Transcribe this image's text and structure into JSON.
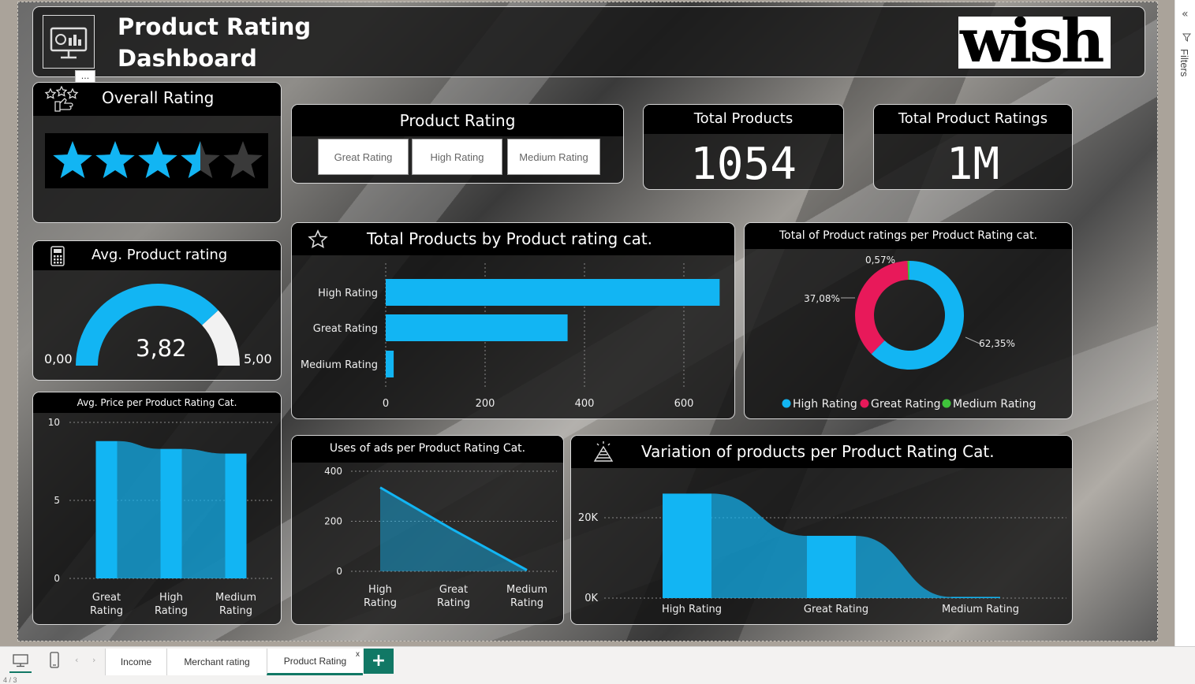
{
  "header": {
    "title_line1": "Product Rating",
    "title_line2": "Dashboard",
    "logo_text": "wish",
    "more_label": "···"
  },
  "overall_rating": {
    "title": "Overall Rating",
    "value": 3.5,
    "max": 5
  },
  "slicer": {
    "title": "Product Rating",
    "options": [
      "Great Rating",
      "High Rating",
      "Medium Rating"
    ]
  },
  "kpis": {
    "total_products": {
      "title": "Total Products",
      "value": "1054"
    },
    "total_ratings": {
      "title": "Total Product Ratings",
      "value": "1M"
    }
  },
  "gauge": {
    "title": "Avg. Product rating",
    "value": 3.82,
    "value_label": "3,82",
    "min_label": "0,00",
    "max_label": "5,00",
    "min": 0,
    "max": 5
  },
  "colors": {
    "accent": "#12b5f3",
    "pink": "#e8195a",
    "green": "#3fc43b",
    "card_bg": "#1a1a1a"
  },
  "chart_data": [
    {
      "id": "total_products_by_cat",
      "type": "bar",
      "orientation": "horizontal",
      "title": "Total Products by Product rating cat.",
      "categories": [
        "High Rating",
        "Great Rating",
        "Medium Rating"
      ],
      "values": [
        672,
        366,
        16
      ],
      "xlim": [
        0,
        700
      ],
      "xticks": [
        "0",
        "200",
        "400",
        "600"
      ],
      "grid": true
    },
    {
      "id": "ratings_share",
      "type": "pie",
      "title": "Total of Product ratings per Product Rating cat.",
      "categories": [
        "High Rating",
        "Great Rating",
        "Medium Rating"
      ],
      "values": [
        62.35,
        37.08,
        0.57
      ],
      "labels": [
        "62,35%",
        "37,08%",
        "0,57%"
      ],
      "legend": "bottom"
    },
    {
      "id": "avg_price",
      "type": "bar",
      "title": "Avg. Price per Product Rating Cat.",
      "categories": [
        "Great\nRating",
        "High\nRating",
        "Medium\nRating"
      ],
      "values": [
        8.8,
        8.3,
        8.0
      ],
      "ylim": [
        0,
        10
      ],
      "yticks": [
        "10",
        "5",
        "0"
      ]
    },
    {
      "id": "uses_of_ads",
      "type": "area",
      "title": "Uses of ads per Product Rating Cat.",
      "categories": [
        "High\nRating",
        "Great\nRating",
        "Medium\nRating"
      ],
      "values": [
        335,
        165,
        5
      ],
      "ylim": [
        0,
        400
      ],
      "yticks": [
        "400",
        "200",
        "0"
      ]
    },
    {
      "id": "variation",
      "type": "bar",
      "title": "Variation of products per Product Rating Cat.",
      "categories": [
        "High Rating",
        "Great Rating",
        "Medium Rating"
      ],
      "values": [
        26000,
        15500,
        300
      ],
      "ylim": [
        0,
        30000
      ],
      "yticks": [
        "20K",
        "0K"
      ]
    }
  ],
  "pane": {
    "label": "Filters"
  },
  "tabs": [
    {
      "label": "Income"
    },
    {
      "label": "Merchant rating"
    },
    {
      "label": "Product Rating",
      "close": "x"
    }
  ],
  "status": {
    "page": "4 / 3"
  }
}
